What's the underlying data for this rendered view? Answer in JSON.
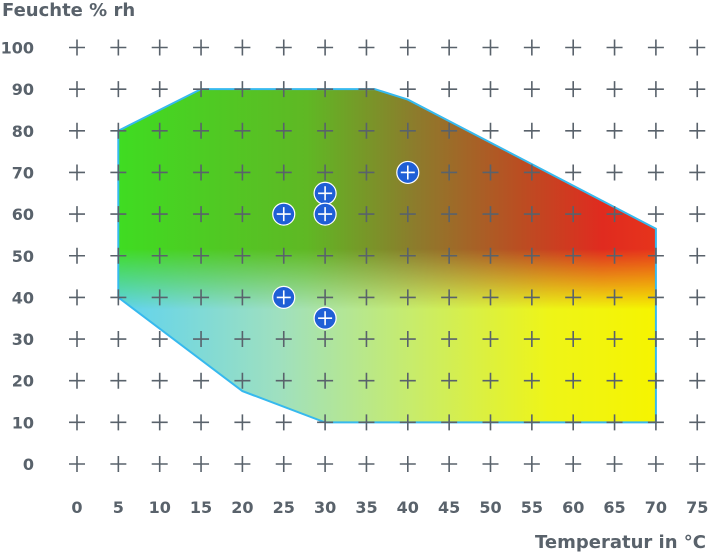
{
  "chart_data": {
    "type": "area",
    "title": "",
    "ylabel": "Feuchte % rh",
    "xlabel": "Temperatur in °C",
    "xlim": [
      0,
      75
    ],
    "ylim": [
      0,
      100
    ],
    "x_ticks": [
      0,
      5,
      10,
      15,
      20,
      25,
      30,
      35,
      40,
      45,
      50,
      55,
      60,
      65,
      70,
      75
    ],
    "y_ticks": [
      0,
      10,
      20,
      30,
      40,
      50,
      60,
      70,
      80,
      90,
      100
    ],
    "grid": "plus-markers",
    "region": {
      "boundary": [
        {
          "x": 5,
          "y": 80
        },
        {
          "x": 15,
          "y": 90
        },
        {
          "x": 36,
          "y": 90
        },
        {
          "x": 40,
          "y": 87.5
        },
        {
          "x": 70,
          "y": 56.5
        },
        {
          "x": 70,
          "y": 10
        },
        {
          "x": 30,
          "y": 10
        },
        {
          "x": 20,
          "y": 17.5
        },
        {
          "x": 5,
          "y": 40
        }
      ],
      "edge_color": "#36b9ee",
      "colors": {
        "green": "#3fdc22",
        "red": "#e02b1f",
        "cyan": "#5fd3ef",
        "yellow": "#f6f400",
        "brown": "#9d6a2c"
      }
    },
    "points": [
      {
        "x": 25,
        "y": 60
      },
      {
        "x": 30,
        "y": 65
      },
      {
        "x": 30,
        "y": 60
      },
      {
        "x": 40,
        "y": 70
      },
      {
        "x": 25,
        "y": 40
      },
      {
        "x": 30,
        "y": 35
      }
    ],
    "point_color": "#1f5fd6"
  }
}
